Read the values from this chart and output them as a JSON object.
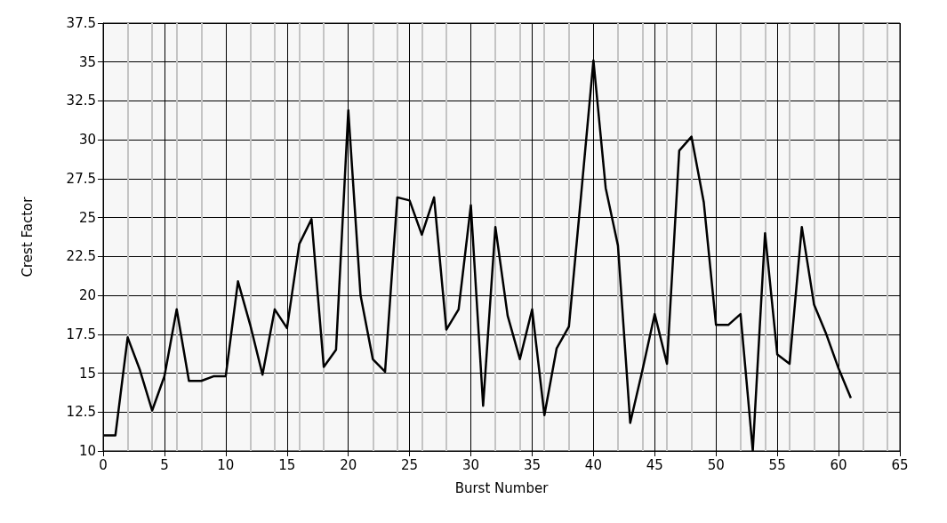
{
  "chart_data": {
    "type": "line",
    "xlabel": "Burst Number",
    "ylabel": "Crest Factor",
    "x": [
      0,
      1,
      2,
      3,
      4,
      5,
      6,
      7,
      8,
      9,
      10,
      11,
      12,
      13,
      14,
      15,
      16,
      17,
      18,
      19,
      20,
      21,
      22,
      23,
      24,
      25,
      26,
      27,
      28,
      29,
      30,
      31,
      32,
      33,
      34,
      35,
      36,
      37,
      38,
      39,
      40,
      41,
      42,
      43,
      44,
      45,
      46,
      47,
      48,
      49,
      50,
      51,
      52,
      53,
      54,
      55,
      56,
      57,
      58,
      59,
      60,
      61
    ],
    "series": [
      {
        "color": "#000000",
        "values": [
          11,
          11,
          17.3,
          15.2,
          12.6,
          14.8,
          19.1,
          14.5,
          14.5,
          14.8,
          14.8,
          20.9,
          18.1,
          14.9,
          19.1,
          17.9,
          23.3,
          24.9,
          15.4,
          16.5,
          31.9,
          20,
          15.9,
          15.1,
          26.3,
          26.1,
          23.9,
          26.3,
          17.8,
          19.1,
          25.8,
          12.9,
          24.4,
          18.7,
          15.9,
          19.1,
          12.3,
          16.6,
          18,
          26.5,
          35.1,
          26.9,
          23.2,
          11.8,
          15.2,
          18.8,
          15.6,
          29.3,
          30.2,
          26,
          18.1,
          18.1,
          18.8,
          10,
          24,
          16.2,
          15.6,
          24.4,
          19.4,
          17.5,
          15.3,
          13.4
        ]
      }
    ],
    "xlim": [
      0,
      65
    ],
    "xticks": [
      0,
      5,
      10,
      15,
      20,
      25,
      30,
      35,
      40,
      45,
      50,
      55,
      60,
      65
    ],
    "ylim": [
      10,
      37.5
    ],
    "yticks": [
      10,
      12.5,
      15,
      17.5,
      20,
      22.5,
      25,
      27.5,
      30,
      32.5,
      35,
      37.5
    ],
    "grid": true,
    "marker": "none",
    "line_style": "solid"
  }
}
